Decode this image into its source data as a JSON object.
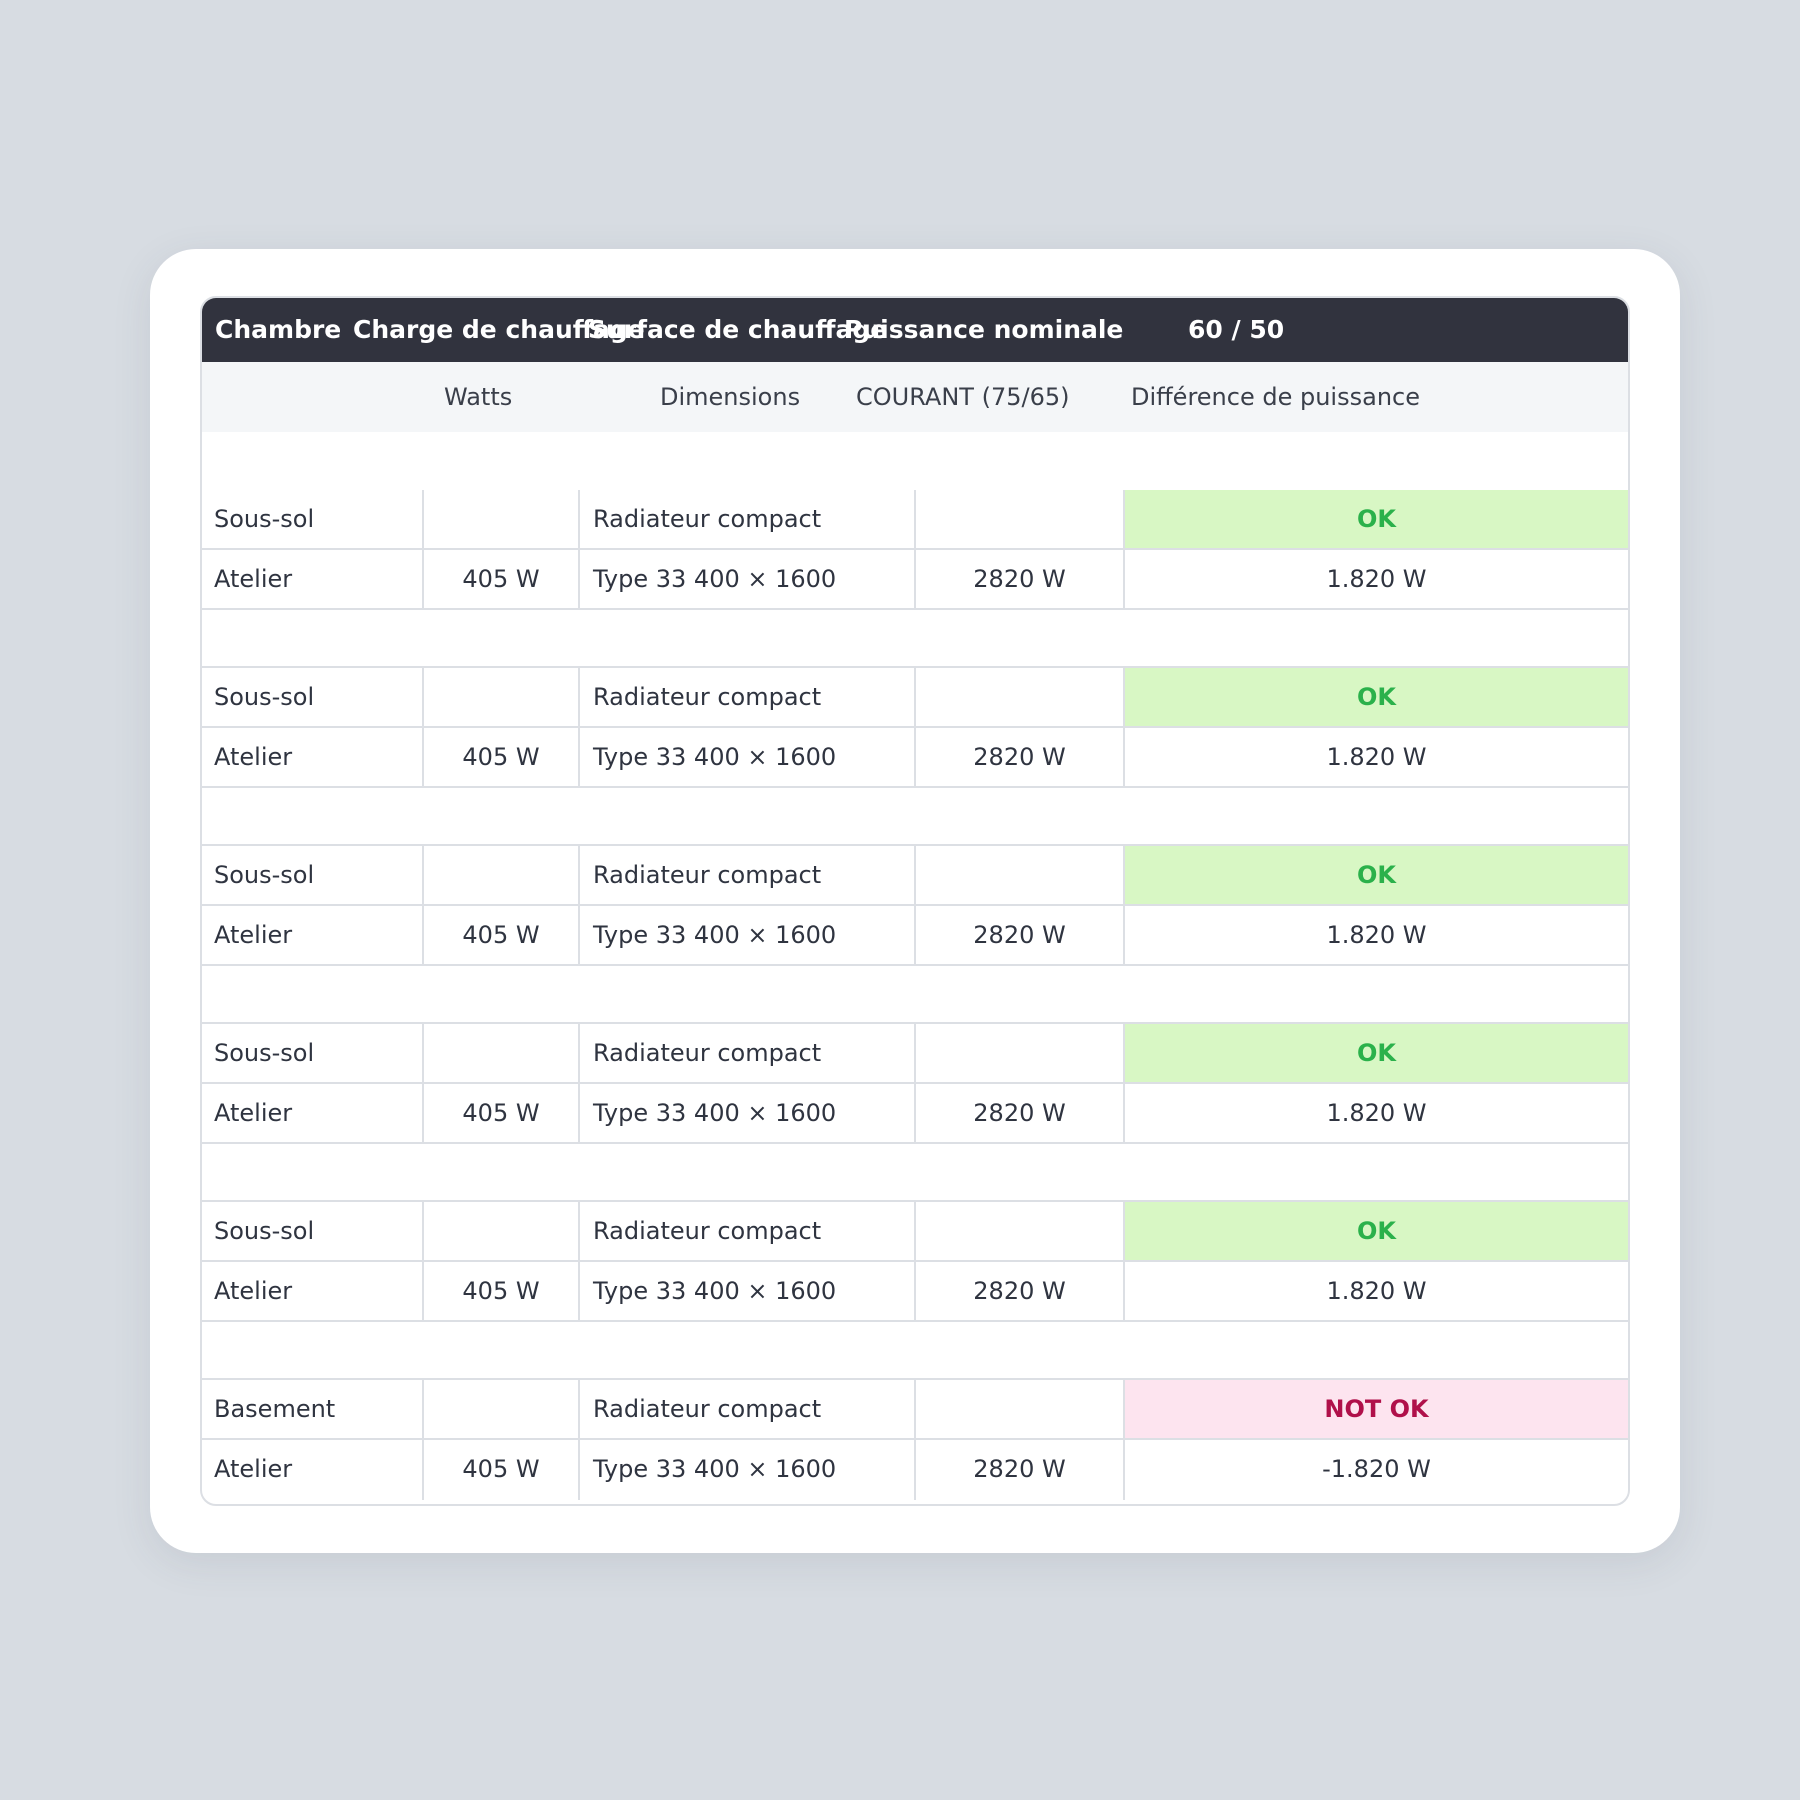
{
  "header": {
    "col1": "Chambre",
    "col2": "Charge de chauffage",
    "col3": "Surface de chauffage",
    "col4": "Puissance nominale",
    "col5": "60 / 50"
  },
  "subheader": {
    "col2": "Watts",
    "col3": "Dimensions",
    "col4": "COURANT (75/65)",
    "col5": "Différence de puissance"
  },
  "groups": [
    {
      "room": "Sous-sol",
      "radiator": "Radiateur compact",
      "status": "OK",
      "area": "Atelier",
      "watts": "405 W",
      "dimensions": "Type 33 400 × 1600",
      "current": "2820 W",
      "difference": "1.820 W"
    },
    {
      "room": "Sous-sol",
      "radiator": "Radiateur compact",
      "status": "OK",
      "area": "Atelier",
      "watts": "405 W",
      "dimensions": "Type 33 400 × 1600",
      "current": "2820 W",
      "difference": "1.820 W"
    },
    {
      "room": "Sous-sol",
      "radiator": "Radiateur compact",
      "status": "OK",
      "area": "Atelier",
      "watts": "405 W",
      "dimensions": "Type 33 400 × 1600",
      "current": "2820 W",
      "difference": "1.820 W"
    },
    {
      "room": "Sous-sol",
      "radiator": "Radiateur compact",
      "status": "OK",
      "area": "Atelier",
      "watts": "405 W",
      "dimensions": "Type 33 400 × 1600",
      "current": "2820 W",
      "difference": "1.820 W"
    },
    {
      "room": "Sous-sol",
      "radiator": "Radiateur compact",
      "status": "OK",
      "area": "Atelier",
      "watts": "405 W",
      "dimensions": "Type 33 400 × 1600",
      "current": "2820 W",
      "difference": "1.820 W"
    },
    {
      "room": "Basement",
      "radiator": "Radiateur compact",
      "status": "NOT OK",
      "area": "Atelier",
      "watts": "405 W",
      "dimensions": "Type 33 400 × 1600",
      "current": "2820 W",
      "difference": "-1.820 W"
    }
  ],
  "colors": {
    "header_bg": "#31333e",
    "ok_bg": "#d8f7c4",
    "ok_text": "#2bb14b",
    "notok_bg": "#fde4ef",
    "notok_text": "#b0104a"
  }
}
